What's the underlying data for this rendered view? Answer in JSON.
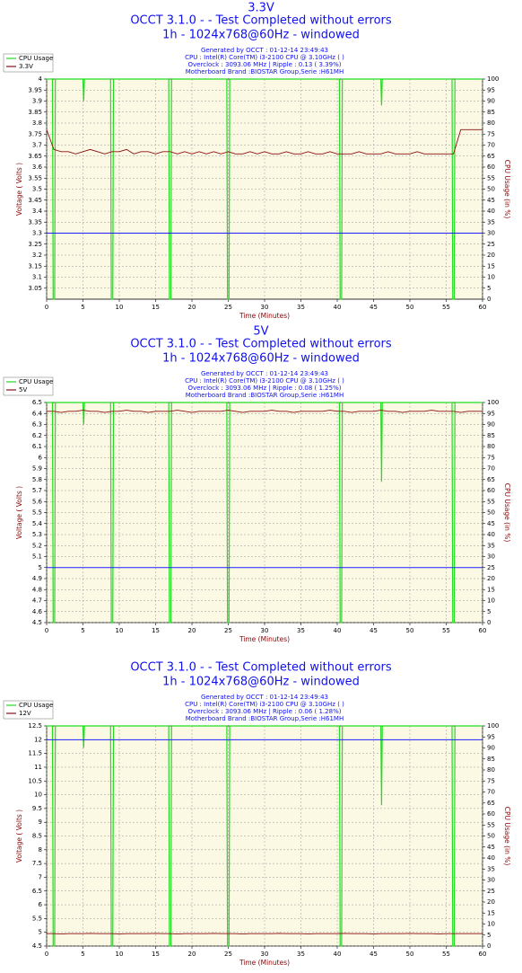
{
  "chart_data": [
    {
      "type": "line",
      "heading": "3.3V",
      "title": "OCCT 3.1.0 -  - Test Completed without errors",
      "subtitle": "1h - 1024x768@60Hz - windowed",
      "info": [
        "Generated by OCCT : 01-12-14 23:49:43",
        "CPU : Intel(R) Core(TM) i3-2100 CPU @ 3.10GHz (  )",
        "Overclock : 3093.06 MHz | Ripple : 0.13 ( 3.39%)",
        "Motherboard Brand :BIOSTAR Group,Serie :H61MH"
      ],
      "xlabel": "Time (Minutes)",
      "ylabel": "Voltage ( Volts )",
      "y2label": "CPU Usage (in %)",
      "xlim": [
        0,
        60
      ],
      "xticks": [
        0,
        5,
        10,
        15,
        20,
        25,
        30,
        35,
        40,
        45,
        50,
        55,
        60
      ],
      "ylim": [
        3,
        4
      ],
      "yticks": [
        3.05,
        3.1,
        3.15,
        3.2,
        3.25,
        3.3,
        3.35,
        3.4,
        3.45,
        3.5,
        3.55,
        3.6,
        3.65,
        3.7,
        3.75,
        3.8,
        3.85,
        3.9,
        3.95,
        4
      ],
      "y2lim": [
        0,
        100
      ],
      "y2ticks": [
        0,
        5,
        10,
        15,
        20,
        25,
        30,
        35,
        40,
        45,
        50,
        55,
        60,
        65,
        70,
        75,
        80,
        85,
        90,
        95,
        100
      ],
      "grid": true,
      "legend": "upper left",
      "reference_line": 3.3,
      "reference_color": "#2020ff",
      "series": [
        {
          "name": "CPU Usage",
          "color": "#22dd22",
          "axis": "y2",
          "x": [
            0,
            0.8,
            0.9,
            1.1,
            1.2,
            5,
            5.1,
            5.2,
            8.8,
            8.9,
            9.1,
            9.2,
            16.8,
            16.9,
            17.1,
            17.2,
            24.8,
            24.9,
            25.1,
            25.2,
            40.3,
            40.4,
            40.6,
            40.7,
            46,
            46.1,
            46.2,
            55.8,
            55.9,
            56.1,
            56.2,
            60
          ],
          "values": [
            100,
            100,
            0,
            0,
            100,
            100,
            90,
            100,
            100,
            0,
            0,
            100,
            100,
            0,
            0,
            100,
            100,
            0,
            0,
            100,
            100,
            0,
            0,
            100,
            100,
            88,
            100,
            100,
            0,
            0,
            100,
            100
          ]
        },
        {
          "name": "3.3V",
          "color": "#8b1010",
          "x": [
            0,
            1,
            2,
            3,
            4,
            5,
            6,
            7,
            8,
            9,
            10,
            11,
            12,
            13,
            14,
            15,
            16,
            17,
            18,
            19,
            20,
            21,
            22,
            23,
            24,
            25,
            26,
            27,
            28,
            29,
            30,
            31,
            32,
            33,
            34,
            35,
            36,
            37,
            38,
            39,
            40,
            41,
            42,
            43,
            44,
            45,
            46,
            47,
            48,
            49,
            50,
            51,
            52,
            53,
            54,
            55,
            56,
            57,
            58,
            59,
            60
          ],
          "values": [
            3.77,
            3.68,
            3.67,
            3.67,
            3.66,
            3.67,
            3.68,
            3.67,
            3.66,
            3.67,
            3.67,
            3.68,
            3.66,
            3.67,
            3.67,
            3.66,
            3.67,
            3.67,
            3.66,
            3.67,
            3.66,
            3.67,
            3.66,
            3.67,
            3.66,
            3.67,
            3.66,
            3.66,
            3.67,
            3.66,
            3.67,
            3.66,
            3.66,
            3.67,
            3.66,
            3.66,
            3.67,
            3.66,
            3.66,
            3.67,
            3.66,
            3.66,
            3.66,
            3.67,
            3.66,
            3.66,
            3.66,
            3.67,
            3.66,
            3.66,
            3.66,
            3.67,
            3.66,
            3.66,
            3.66,
            3.66,
            3.66,
            3.77,
            3.77,
            3.77,
            3.77
          ]
        }
      ]
    },
    {
      "type": "line",
      "heading": "5V",
      "title": "OCCT 3.1.0 -  - Test Completed without errors",
      "subtitle": "1h - 1024x768@60Hz - windowed",
      "info": [
        "Generated by OCCT : 01-12-14 23:49:43",
        "CPU : Intel(R) Core(TM) i3-2100 CPU @ 3.10GHz (  )",
        "Overclock : 3093.06 MHz | Ripple : 0.08 ( 1.25%)",
        "Motherboard Brand :BIOSTAR Group,Serie :H61MH"
      ],
      "xlabel": "Time (Minutes)",
      "ylabel": "Voltage ( Volts )",
      "y2label": "CPU Usage (in %)",
      "xlim": [
        0,
        60
      ],
      "xticks": [
        0,
        5,
        10,
        15,
        20,
        25,
        30,
        35,
        40,
        45,
        50,
        55,
        60
      ],
      "ylim": [
        4.5,
        6.5
      ],
      "yticks": [
        4.5,
        4.6,
        4.7,
        4.8,
        4.9,
        5,
        5.1,
        5.2,
        5.3,
        5.4,
        5.5,
        5.6,
        5.7,
        5.8,
        5.9,
        6,
        6.1,
        6.2,
        6.3,
        6.4,
        6.5
      ],
      "y2lim": [
        0,
        100
      ],
      "y2ticks": [
        0,
        5,
        10,
        15,
        20,
        25,
        30,
        35,
        40,
        45,
        50,
        55,
        60,
        65,
        70,
        75,
        80,
        85,
        90,
        95,
        100
      ],
      "grid": true,
      "legend": "upper left",
      "reference_line": 5,
      "reference_color": "#2020ff",
      "series": [
        {
          "name": "CPU Usage",
          "color": "#22dd22",
          "axis": "y2",
          "x": [
            0,
            0.8,
            0.9,
            1.1,
            1.2,
            5,
            5.1,
            5.2,
            8.8,
            8.9,
            9.1,
            9.2,
            16.8,
            16.9,
            17.1,
            17.2,
            24.8,
            24.9,
            25.1,
            25.2,
            40.3,
            40.4,
            40.6,
            40.7,
            46,
            46.1,
            46.2,
            55.8,
            55.9,
            56.1,
            56.2,
            60
          ],
          "values": [
            100,
            100,
            0,
            0,
            100,
            100,
            90,
            100,
            100,
            0,
            0,
            100,
            100,
            0,
            0,
            100,
            100,
            0,
            0,
            100,
            100,
            0,
            0,
            100,
            100,
            64,
            100,
            100,
            0,
            0,
            100,
            100
          ]
        },
        {
          "name": "5V",
          "color": "#8b1010",
          "x": [
            0,
            1,
            2,
            3,
            4,
            5,
            6,
            7,
            8,
            9,
            10,
            11,
            12,
            13,
            14,
            15,
            16,
            17,
            18,
            19,
            20,
            21,
            22,
            23,
            24,
            25,
            26,
            27,
            28,
            29,
            30,
            31,
            32,
            33,
            34,
            35,
            36,
            37,
            38,
            39,
            40,
            41,
            42,
            43,
            44,
            45,
            46,
            47,
            48,
            49,
            50,
            51,
            52,
            53,
            54,
            55,
            56,
            57,
            58,
            59,
            60
          ],
          "values": [
            6.42,
            6.42,
            6.41,
            6.42,
            6.42,
            6.43,
            6.42,
            6.42,
            6.41,
            6.42,
            6.42,
            6.43,
            6.42,
            6.42,
            6.41,
            6.42,
            6.42,
            6.42,
            6.43,
            6.42,
            6.41,
            6.42,
            6.42,
            6.42,
            6.42,
            6.43,
            6.42,
            6.41,
            6.42,
            6.42,
            6.42,
            6.43,
            6.42,
            6.42,
            6.41,
            6.42,
            6.42,
            6.42,
            6.42,
            6.43,
            6.42,
            6.42,
            6.41,
            6.42,
            6.42,
            6.42,
            6.43,
            6.42,
            6.42,
            6.41,
            6.42,
            6.42,
            6.42,
            6.43,
            6.42,
            6.42,
            6.42,
            6.41,
            6.42,
            6.42,
            6.42
          ]
        }
      ]
    },
    {
      "type": "line",
      "title": "OCCT 3.1.0 -  - Test Completed without errors",
      "subtitle": "1h - 1024x768@60Hz - windowed",
      "info": [
        "Generated by OCCT : 01-12-14 23:49:43",
        "CPU : Intel(R) Core(TM) i3-2100 CPU @ 3.10GHz (  )",
        "Overclock : 3093.06 MHz | Ripple : 0.06 ( 1.28%)",
        "Motherboard Brand :BIOSTAR Group,Serie :H61MH"
      ],
      "xlabel": "Time (Minutes)",
      "ylabel": "Voltage ( Volts )",
      "y2label": "CPU Usage (in %)",
      "xlim": [
        0,
        60
      ],
      "xticks": [
        0,
        5,
        10,
        15,
        20,
        25,
        30,
        35,
        40,
        45,
        50,
        55,
        60
      ],
      "ylim": [
        4.5,
        12.5
      ],
      "yticks": [
        4.5,
        5,
        5.5,
        6,
        6.5,
        7,
        7.5,
        8,
        8.5,
        9,
        9.5,
        10,
        10.5,
        11,
        11.5,
        12,
        12.5
      ],
      "y2lim": [
        0,
        100
      ],
      "y2ticks": [
        0,
        5,
        10,
        15,
        20,
        25,
        30,
        35,
        40,
        45,
        50,
        55,
        60,
        65,
        70,
        75,
        80,
        85,
        90,
        95,
        100
      ],
      "grid": true,
      "legend": "upper left",
      "reference_line": 12,
      "reference_color": "#2020ff",
      "series": [
        {
          "name": "CPU Usage",
          "color": "#22dd22",
          "axis": "y2",
          "x": [
            0,
            0.8,
            0.9,
            1.1,
            1.2,
            5,
            5.1,
            5.2,
            8.8,
            8.9,
            9.1,
            9.2,
            16.8,
            16.9,
            17.1,
            17.2,
            24.8,
            24.9,
            25.1,
            25.2,
            40.3,
            40.4,
            40.6,
            40.7,
            46,
            46.1,
            46.2,
            55.8,
            55.9,
            56.1,
            56.2,
            60
          ],
          "values": [
            100,
            100,
            0,
            0,
            100,
            100,
            90,
            100,
            100,
            0,
            0,
            100,
            100,
            0,
            0,
            100,
            100,
            0,
            0,
            100,
            100,
            0,
            0,
            100,
            100,
            64,
            100,
            100,
            0,
            0,
            100,
            100
          ]
        },
        {
          "name": "12V",
          "color": "#8b1010",
          "x": [
            0,
            1,
            2,
            3,
            4,
            5,
            6,
            7,
            8,
            9,
            10,
            11,
            12,
            13,
            14,
            15,
            16,
            17,
            18,
            19,
            20,
            21,
            22,
            23,
            24,
            25,
            26,
            27,
            28,
            29,
            30,
            31,
            32,
            33,
            34,
            35,
            36,
            37,
            38,
            39,
            40,
            41,
            42,
            43,
            44,
            45,
            46,
            47,
            48,
            49,
            50,
            51,
            52,
            53,
            54,
            55,
            56,
            57,
            58,
            59,
            60
          ],
          "values": [
            4.95,
            4.95,
            4.94,
            4.95,
            4.95,
            4.95,
            4.96,
            4.95,
            4.95,
            4.95,
            4.94,
            4.95,
            4.95,
            4.95,
            4.95,
            4.96,
            4.95,
            4.95,
            4.94,
            4.95,
            4.95,
            4.95,
            4.95,
            4.96,
            4.95,
            4.95,
            4.95,
            4.94,
            4.95,
            4.95,
            4.95,
            4.95,
            4.96,
            4.95,
            4.95,
            4.95,
            4.94,
            4.95,
            4.95,
            4.95,
            4.95,
            4.96,
            4.95,
            4.95,
            4.95,
            4.94,
            4.95,
            4.95,
            4.95,
            4.95,
            4.96,
            4.95,
            4.95,
            4.95,
            4.94,
            4.95,
            4.95,
            4.95,
            4.95,
            4.95,
            4.95
          ]
        }
      ]
    }
  ]
}
